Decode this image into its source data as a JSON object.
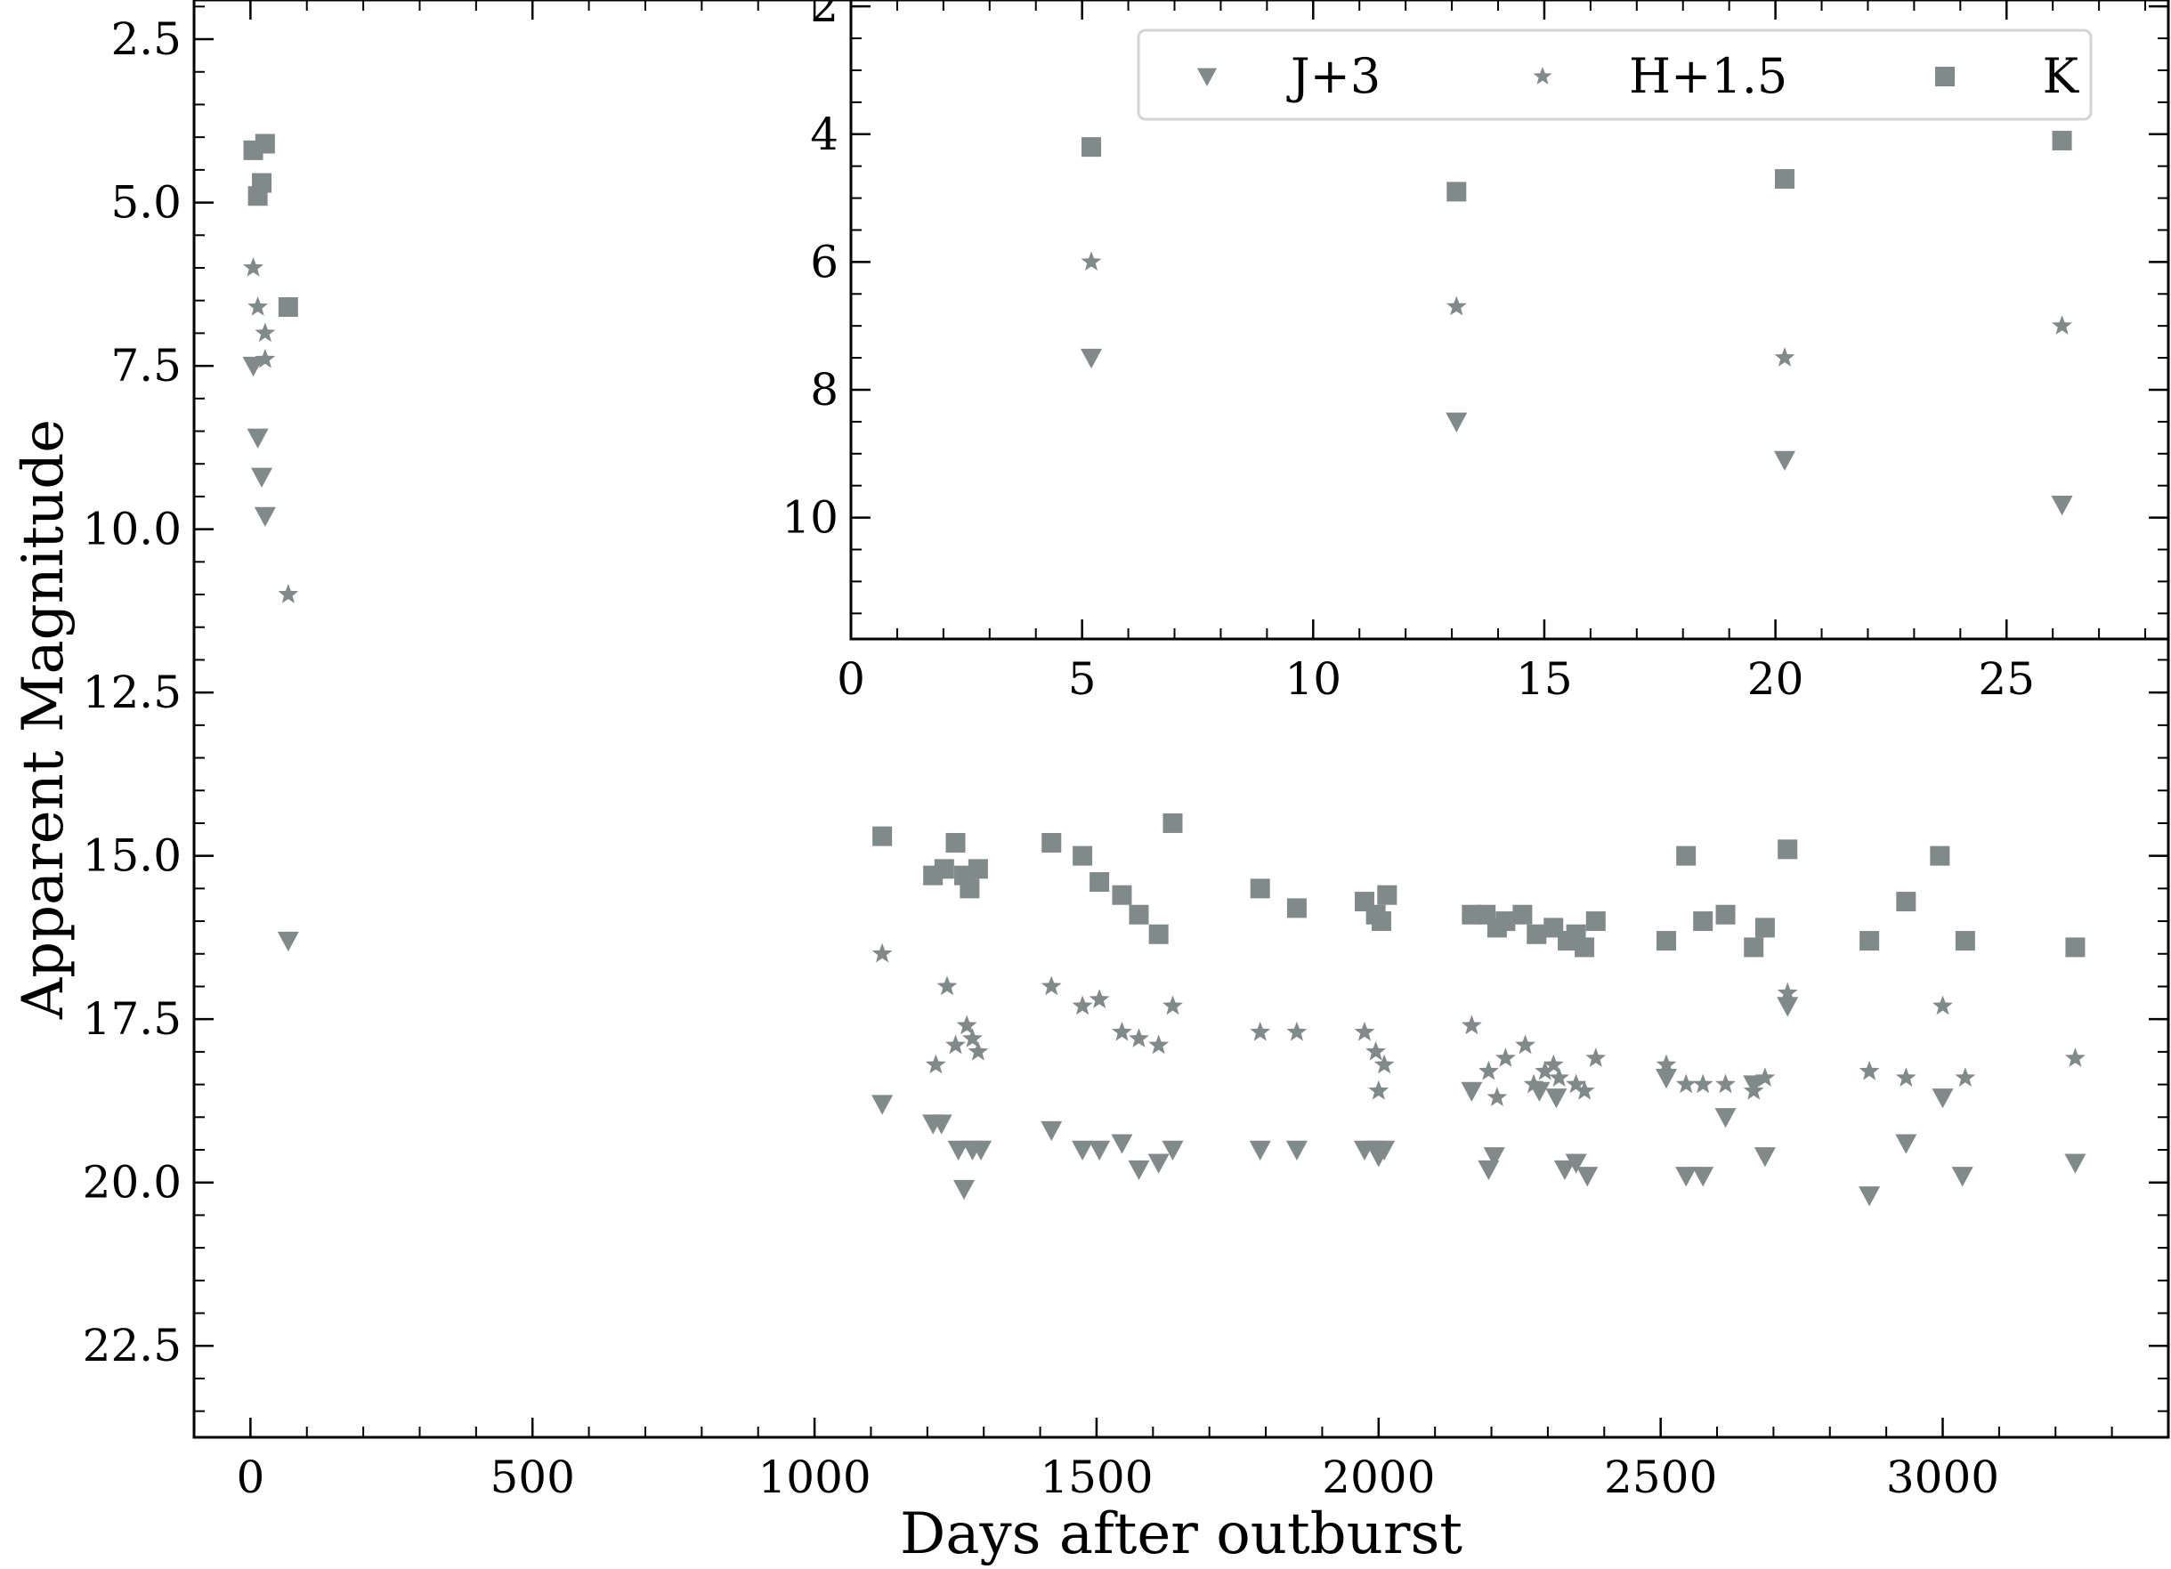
{
  "chart_data": [
    {
      "type": "scatter",
      "title": "",
      "xlabel": "Days after outburst",
      "ylabel": "Apparent Magnitude",
      "xlim": [
        -100,
        3400
      ],
      "ylim": [
        23.9,
        1.9
      ],
      "y_inverted": true,
      "x_ticks": [
        0,
        500,
        1000,
        1500,
        2000,
        2500,
        3000
      ],
      "x_tick_labels": [
        "0",
        "500",
        "1000",
        "1500",
        "2000",
        "2500",
        "3000"
      ],
      "y_ticks": [
        2.5,
        5.0,
        7.5,
        10.0,
        12.5,
        15.0,
        17.5,
        20.0,
        22.5
      ],
      "y_tick_labels": [
        "2.5",
        "5.0",
        "7.5",
        "10.0",
        "12.5",
        "15.0",
        "17.5",
        "20.0",
        "22.5"
      ],
      "grid": false,
      "marker_color": "#808a88",
      "series": [
        {
          "name": "J+3",
          "marker": "triangle-down",
          "x": [
            5,
            13,
            20,
            26,
            67,
            1120,
            1210,
            1225,
            1255,
            1265,
            1280,
            1295,
            1420,
            1475,
            1505,
            1545,
            1575,
            1610,
            1635,
            1790,
            1855,
            1975,
            1995,
            2000,
            2010,
            2165,
            2195,
            2205,
            2285,
            2315,
            2330,
            2350,
            2370,
            2510,
            2545,
            2575,
            2615,
            2665,
            2685,
            2725,
            2870,
            2935,
            3000,
            3035,
            3235
          ],
          "y": [
            7.5,
            8.6,
            9.2,
            9.8,
            16.3,
            18.8,
            19.1,
            19.1,
            19.5,
            20.1,
            19.5,
            19.5,
            19.2,
            19.5,
            19.5,
            19.4,
            19.8,
            19.7,
            19.5,
            19.5,
            19.5,
            19.5,
            19.5,
            19.6,
            19.5,
            18.6,
            19.8,
            19.6,
            18.6,
            18.7,
            19.8,
            19.7,
            19.9,
            18.4,
            19.9,
            19.9,
            19.0,
            18.5,
            19.6,
            17.3,
            20.2,
            19.4,
            18.7,
            19.9,
            19.7
          ]
        },
        {
          "name": "H+1.5",
          "marker": "star",
          "x": [
            5,
            13,
            26,
            26,
            67,
            1120,
            1215,
            1235,
            1250,
            1270,
            1280,
            1290,
            1420,
            1475,
            1505,
            1545,
            1575,
            1610,
            1635,
            1790,
            1855,
            1975,
            1995,
            2000,
            2010,
            2165,
            2195,
            2210,
            2225,
            2260,
            2275,
            2295,
            2310,
            2320,
            2350,
            2365,
            2385,
            2510,
            2545,
            2575,
            2615,
            2665,
            2685,
            2725,
            2870,
            2935,
            3000,
            3040,
            3235
          ],
          "y": [
            6.0,
            6.6,
            7.0,
            7.4,
            11.0,
            16.5,
            18.2,
            17.0,
            17.9,
            17.6,
            17.8,
            18.0,
            17.0,
            17.3,
            17.2,
            17.7,
            17.8,
            17.9,
            17.3,
            17.7,
            17.7,
            17.7,
            18.0,
            18.6,
            18.2,
            17.6,
            18.3,
            18.7,
            18.1,
            17.9,
            18.5,
            18.3,
            18.2,
            18.4,
            18.5,
            18.6,
            18.1,
            18.2,
            18.5,
            18.5,
            18.5,
            18.6,
            18.4,
            17.1,
            18.3,
            18.4,
            17.3,
            18.4,
            18.1
          ]
        },
        {
          "name": "K",
          "marker": "square",
          "x": [
            5,
            13,
            20,
            26,
            67,
            1120,
            1210,
            1230,
            1250,
            1265,
            1275,
            1290,
            1420,
            1475,
            1505,
            1545,
            1575,
            1610,
            1635,
            1790,
            1855,
            1975,
            1995,
            2005,
            2015,
            2165,
            2190,
            2210,
            2225,
            2255,
            2280,
            2310,
            2335,
            2350,
            2365,
            2385,
            2510,
            2545,
            2575,
            2615,
            2665,
            2685,
            2725,
            2870,
            2935,
            2995,
            3040,
            3235
          ],
          "y": [
            4.2,
            4.9,
            4.7,
            4.1,
            6.6,
            14.7,
            15.3,
            15.2,
            14.8,
            15.3,
            15.5,
            15.2,
            14.8,
            15.0,
            15.4,
            15.6,
            15.9,
            16.2,
            14.5,
            15.5,
            15.8,
            15.7,
            15.9,
            16.0,
            15.6,
            15.9,
            15.9,
            16.1,
            16.0,
            15.9,
            16.2,
            16.1,
            16.3,
            16.2,
            16.4,
            16.0,
            16.3,
            15.0,
            16.0,
            15.9,
            16.4,
            16.1,
            14.9,
            16.3,
            15.7,
            15.0,
            16.3,
            16.4
          ]
        }
      ]
    },
    {
      "type": "scatter",
      "title": "",
      "xlabel": "",
      "ylabel": "",
      "xlim": [
        0,
        28.5
      ],
      "ylim": [
        11.9,
        1.9
      ],
      "y_inverted": true,
      "x_ticks": [
        0,
        5,
        10,
        15,
        20,
        25
      ],
      "x_tick_labels": [
        "0",
        "5",
        "10",
        "15",
        "20",
        "25"
      ],
      "y_ticks": [
        2,
        4,
        6,
        8,
        10
      ],
      "y_tick_labels": [
        "2",
        "4",
        "6",
        "8",
        "10"
      ],
      "grid": false,
      "legend_position": "top",
      "series": [
        {
          "name": "J+3",
          "marker": "triangle-down",
          "x": [
            5.2,
            13.1,
            20.2,
            26.2
          ],
          "y": [
            7.5,
            8.5,
            9.1,
            9.8
          ]
        },
        {
          "name": "H+1.5",
          "marker": "star",
          "x": [
            5.2,
            13.1,
            20.2,
            26.2
          ],
          "y": [
            6.0,
            6.7,
            7.5,
            7.0
          ]
        },
        {
          "name": "K",
          "marker": "square",
          "x": [
            5.2,
            13.1,
            20.2,
            26.2
          ],
          "y": [
            4.2,
            4.9,
            4.7,
            4.1
          ]
        }
      ]
    }
  ]
}
